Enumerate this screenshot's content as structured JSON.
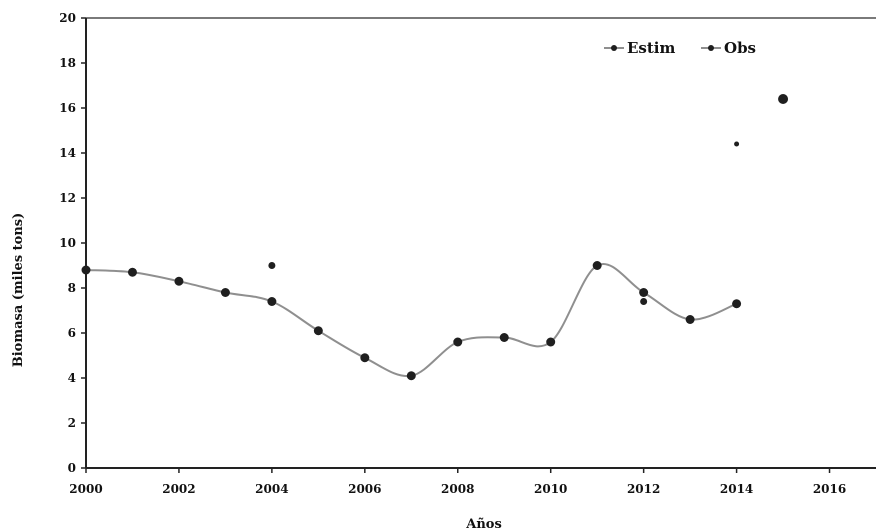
{
  "chart_data": {
    "type": "line",
    "xlabel": "Años",
    "ylabel": "Biomasa (miles tons)",
    "xlim": [
      2000,
      2017
    ],
    "ylim": [
      0,
      20
    ],
    "x_ticks": [
      2000,
      2002,
      2004,
      2006,
      2008,
      2010,
      2012,
      2014,
      2016
    ],
    "x_tick_labels": [
      "2000",
      "2002",
      "2004",
      "2006",
      "2008",
      "2010",
      "2012",
      "2014",
      "2016"
    ],
    "y_ticks": [
      0,
      2,
      4,
      6,
      8,
      10,
      12,
      14,
      16,
      18,
      20
    ],
    "y_tick_labels": [
      "0",
      "2",
      "4",
      "6",
      "8",
      "10",
      "12",
      "14",
      "16",
      "18",
      "20"
    ],
    "legend_position": "top-right",
    "series": [
      {
        "name": "Estim",
        "style": "smoothed line with markers",
        "color": "#8f8f8f",
        "marker_color": "#1f1f1f",
        "x": [
          2000,
          2001,
          2002,
          2003,
          2004,
          2005,
          2006,
          2007,
          2008,
          2009,
          2010,
          2011,
          2012,
          2013,
          2014
        ],
        "y": [
          8.8,
          8.7,
          8.3,
          7.8,
          7.4,
          6.1,
          4.9,
          4.1,
          5.6,
          5.8,
          5.6,
          9.0,
          7.8,
          6.6,
          7.3
        ]
      },
      {
        "name": "Obs",
        "style": "markers",
        "color": "#8f8f8f",
        "marker_color": "#1f1f1f",
        "x": [
          2004,
          2012,
          2014,
          2015
        ],
        "y": [
          9.0,
          7.4,
          14.4,
          16.4
        ]
      }
    ]
  }
}
